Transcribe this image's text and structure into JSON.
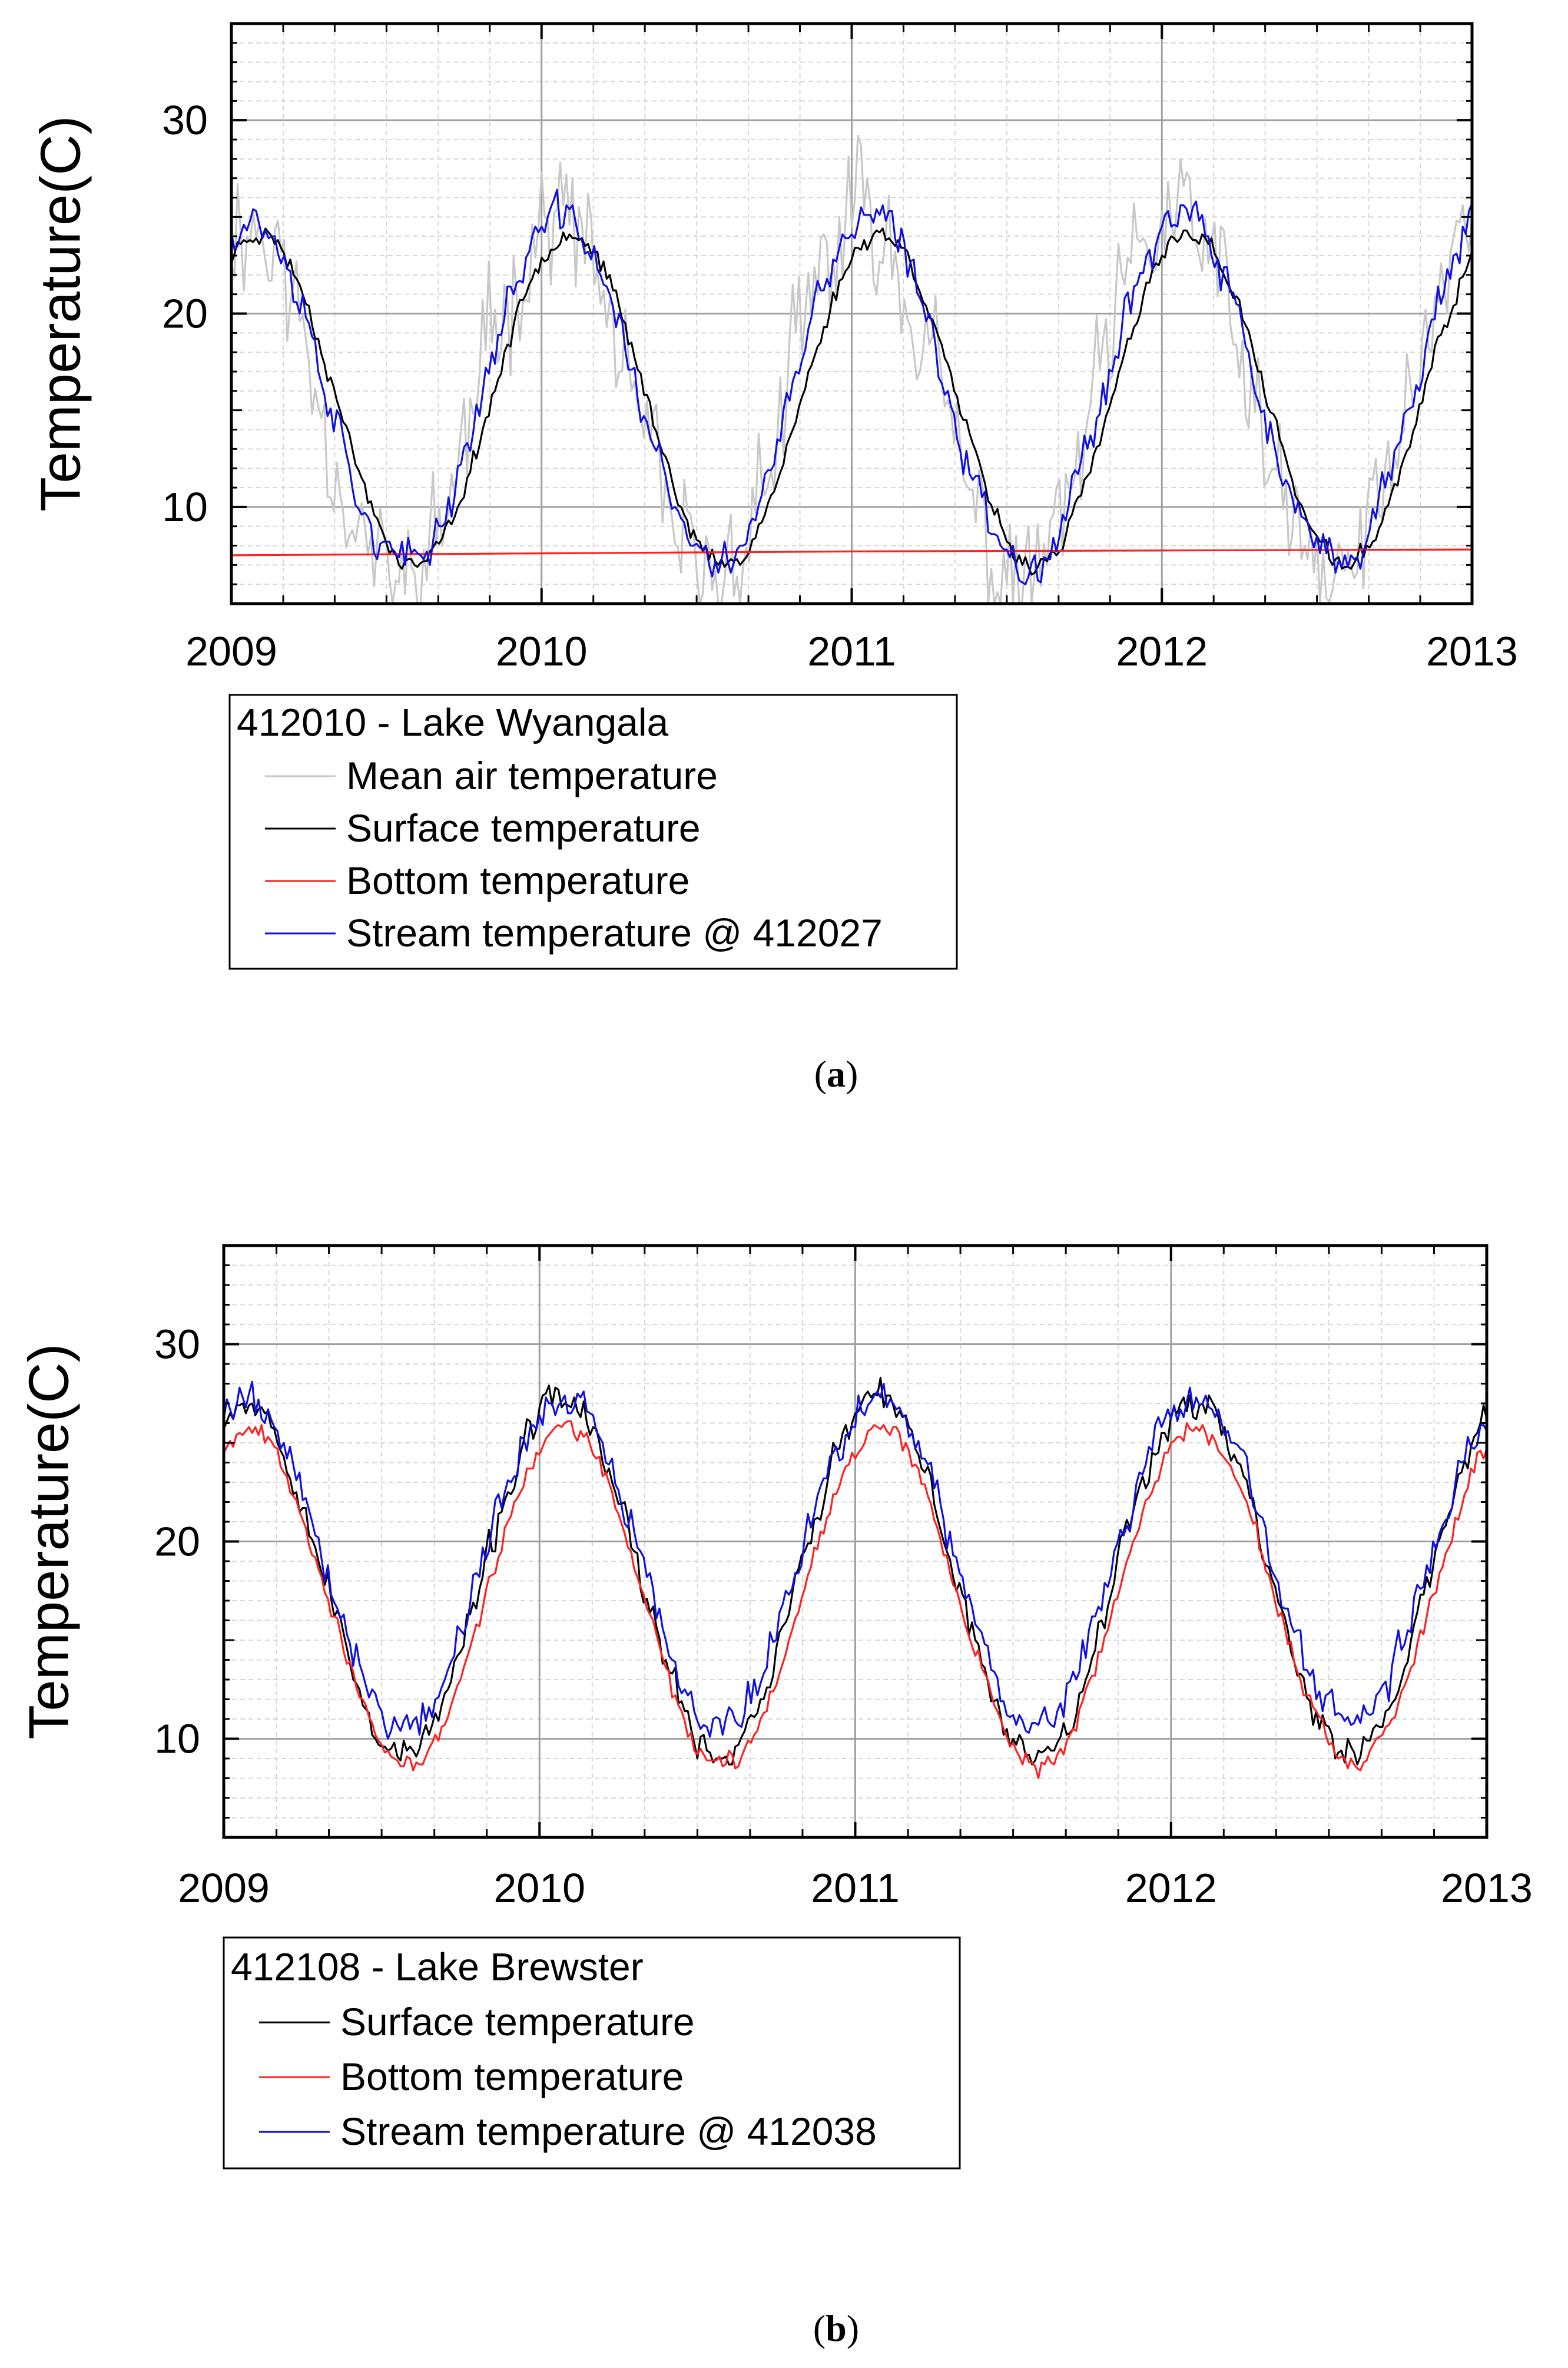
{
  "chart_data": [
    {
      "id": "a",
      "type": "line",
      "caption_label": "a",
      "ylabel": "Temperature(C)",
      "xlim": [
        2009,
        2013
      ],
      "ylim": [
        5,
        35
      ],
      "x_ticks": [
        2009,
        2010,
        2011,
        2012,
        2013
      ],
      "x_tick_labels": [
        "2009",
        "2010",
        "2011",
        "2012",
        "2013"
      ],
      "y_ticks": [
        10,
        20,
        30
      ],
      "y_tick_labels": [
        "10",
        "20",
        "30"
      ],
      "grid": true,
      "legend_title": "412010 - Lake Wyangala",
      "legend_position": "below-left",
      "series": [
        {
          "name": "Mean air temperature",
          "color": "#c8c8c8",
          "model": {
            "mean": 15.5,
            "amp": 9.5,
            "phase": 0.04,
            "noise": 4.5,
            "floor": 5.0,
            "seed": 11
          }
        },
        {
          "name": "Surface temperature",
          "color": "#000000",
          "model": {
            "mean": 15.6,
            "amp": 8.6,
            "phase": 0.09,
            "noise": 0.6,
            "floor": 5.0,
            "seed": 23
          }
        },
        {
          "name": "Bottom temperature",
          "color": "#ff2020",
          "values_xy": [
            [
              2009,
              7.5
            ],
            [
              2011,
              7.7
            ],
            [
              2013,
              7.8
            ]
          ]
        },
        {
          "name": "Stream temperature @ 412027",
          "color": "#1010e0",
          "model": {
            "mean": 16.0,
            "amp": 9.0,
            "phase": 0.06,
            "noise": 1.4,
            "floor": 6.0,
            "seed": 37
          }
        }
      ]
    },
    {
      "id": "b",
      "type": "line",
      "caption_label": "b",
      "ylabel": "Temperature(C)",
      "xlim": [
        2009,
        2013
      ],
      "ylim": [
        5,
        35
      ],
      "x_ticks": [
        2009,
        2010,
        2011,
        2012,
        2013
      ],
      "x_tick_labels": [
        "2009",
        "2010",
        "2011",
        "2012",
        "2013"
      ],
      "y_ticks": [
        10,
        20,
        30
      ],
      "y_tick_labels": [
        "10",
        "20",
        "30"
      ],
      "grid": true,
      "legend_title": "412108 - Lake Brewster",
      "legend_position": "below-left",
      "series": [
        {
          "name": "Surface temperature",
          "color": "#000000",
          "model": {
            "mean": 18.2,
            "amp": 9.0,
            "phase": 0.07,
            "noise": 1.1,
            "floor": 7.5,
            "seed": 53
          }
        },
        {
          "name": "Bottom temperature",
          "color": "#ff2020",
          "model": {
            "mean": 17.2,
            "amp": 8.6,
            "phase": 0.08,
            "noise": 0.6,
            "floor": 7.5,
            "seed": 67
          }
        },
        {
          "name": "Stream temperature @ 412038",
          "color": "#1010e0",
          "model": {
            "mean": 19.0,
            "amp": 8.3,
            "phase": 0.07,
            "noise": 1.2,
            "floor": 8.5,
            "seed": 79
          }
        }
      ]
    }
  ]
}
